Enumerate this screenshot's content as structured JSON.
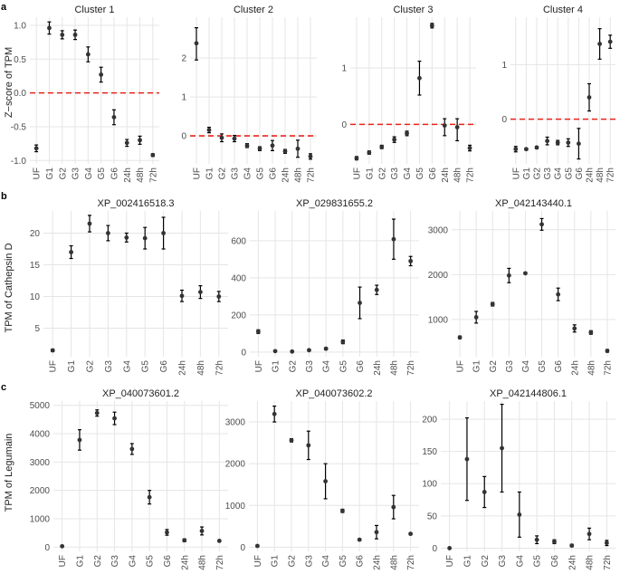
{
  "panels": [
    {
      "letter": "a",
      "ylabel": "Z−score of TPM"
    },
    {
      "letter": "b",
      "ylabel": "TPM of Cathepsin D"
    },
    {
      "letter": "c",
      "ylabel": "TPM of Legumain"
    }
  ],
  "colors": {
    "point": "#333333",
    "grid": "#e5e5e5",
    "reference_line": "#e8231c",
    "text": "#222222",
    "tick_text": "#4d4d4d"
  },
  "chart_data": [
    {
      "type": "scatter",
      "panel": "a",
      "title": "Cluster 1",
      "categories": [
        "UF",
        "G1",
        "G2",
        "G3",
        "G4",
        "G5",
        "G6",
        "24h",
        "48h",
        "72h"
      ],
      "y": [
        -0.82,
        0.96,
        0.86,
        0.86,
        0.57,
        0.27,
        -0.36,
        -0.74,
        -0.7,
        -0.92
      ],
      "err_low": [
        -0.87,
        0.87,
        0.8,
        0.79,
        0.46,
        0.16,
        -0.47,
        -0.79,
        -0.76,
        -0.94
      ],
      "err_high": [
        -0.77,
        1.05,
        0.92,
        0.93,
        0.68,
        0.38,
        -0.25,
        -0.69,
        -0.64,
        -0.9
      ],
      "ylim": [
        -1.05,
        1.12
      ],
      "yticks": [
        "-1.0",
        "-0.5",
        "0.0",
        "0.5",
        "1.0"
      ],
      "hline": 0
    },
    {
      "type": "scatter",
      "panel": "a",
      "title": "Cluster 2",
      "categories": [
        "UF",
        "G1",
        "G2",
        "G3",
        "G4",
        "G5",
        "G6",
        "24h",
        "48h",
        "72h"
      ],
      "y": [
        2.38,
        0.15,
        -0.05,
        -0.07,
        -0.25,
        -0.33,
        -0.25,
        -0.4,
        -0.33,
        -0.53
      ],
      "err_low": [
        1.95,
        0.08,
        -0.15,
        -0.15,
        -0.3,
        -0.38,
        -0.38,
        -0.45,
        -0.55,
        -0.6
      ],
      "err_high": [
        2.78,
        0.22,
        0.05,
        0.01,
        -0.2,
        -0.28,
        -0.12,
        -0.35,
        -0.11,
        -0.46
      ],
      "ylim": [
        -0.72,
        3.05
      ],
      "yticks": [
        "0",
        "1",
        "2"
      ],
      "hline": 0
    },
    {
      "type": "scatter",
      "panel": "a",
      "title": "Cluster 3",
      "categories": [
        "UF",
        "G1",
        "G2",
        "G3",
        "G4",
        "G5",
        "G6",
        "24h",
        "48h",
        "72h"
      ],
      "y": [
        -0.6,
        -0.5,
        -0.4,
        -0.27,
        -0.16,
        0.82,
        1.75,
        -0.02,
        -0.05,
        -0.42
      ],
      "err_low": [
        -0.63,
        -0.53,
        -0.43,
        -0.32,
        -0.2,
        0.52,
        1.71,
        -0.2,
        -0.29,
        -0.47
      ],
      "err_high": [
        -0.57,
        -0.47,
        -0.37,
        -0.22,
        -0.12,
        1.12,
        1.79,
        0.1,
        0.1,
        -0.37
      ],
      "ylim": [
        -0.7,
        1.9
      ],
      "yticks": [
        "0",
        "1"
      ],
      "hline": 0
    },
    {
      "type": "scatter",
      "panel": "a",
      "title": "Cluster 4",
      "categories": [
        "UF",
        "G1",
        "G2",
        "G3",
        "G4",
        "G5",
        "G6",
        "24h",
        "48h",
        "72h"
      ],
      "y": [
        -0.55,
        -0.55,
        -0.52,
        -0.4,
        -0.43,
        -0.43,
        -0.45,
        0.4,
        1.38,
        1.42
      ],
      "err_low": [
        -0.6,
        -0.57,
        -0.54,
        -0.47,
        -0.47,
        -0.5,
        -0.73,
        0.15,
        1.1,
        1.3
      ],
      "err_high": [
        -0.5,
        -0.53,
        -0.5,
        -0.33,
        -0.39,
        -0.36,
        -0.17,
        0.65,
        1.66,
        1.54
      ],
      "ylim": [
        -0.82,
        1.87
      ],
      "yticks": [
        "0",
        "1"
      ],
      "hline": 0
    },
    {
      "type": "scatter",
      "panel": "b",
      "title": "XP_002416518.3",
      "categories": [
        "UF",
        "G1",
        "G2",
        "G3",
        "G4",
        "G5",
        "G6",
        "24h",
        "48h",
        "72h"
      ],
      "y": [
        1.5,
        17.0,
        21.5,
        20.0,
        19.3,
        19.2,
        20.0,
        10.1,
        10.7,
        10.0
      ],
      "err_low": [
        1.3,
        16.0,
        20.2,
        18.8,
        18.6,
        17.5,
        17.5,
        9.2,
        9.7,
        9.2
      ],
      "err_high": [
        1.7,
        18.0,
        22.8,
        21.2,
        20.0,
        20.9,
        22.5,
        11.0,
        11.7,
        10.8
      ],
      "ylim": [
        0.5,
        23.5
      ],
      "yticks": [
        "5",
        "10",
        "15",
        "20"
      ]
    },
    {
      "type": "scatter",
      "panel": "b",
      "title": "XP_029831655.2",
      "categories": [
        "UF",
        "G1",
        "G2",
        "G3",
        "G4",
        "G5",
        "G6",
        "24h",
        "48h",
        "72h"
      ],
      "y": [
        110,
        5,
        3,
        10,
        18,
        55,
        265,
        335,
        608,
        490
      ],
      "err_low": [
        100,
        2,
        1,
        6,
        12,
        45,
        180,
        310,
        500,
        465
      ],
      "err_high": [
        120,
        8,
        5,
        14,
        24,
        65,
        350,
        360,
        716,
        515
      ],
      "ylim": [
        -25,
        760
      ],
      "yticks": [
        "0",
        "200",
        "400",
        "600"
      ]
    },
    {
      "type": "scatter",
      "panel": "b",
      "title": "XP_042143440.1",
      "categories": [
        "UF",
        "G1",
        "G2",
        "G3",
        "G4",
        "G5",
        "G6",
        "24h",
        "48h",
        "72h"
      ],
      "y": [
        600,
        1050,
        1340,
        1980,
        2030,
        3120,
        1560,
        800,
        710,
        300
      ],
      "err_low": [
        570,
        920,
        1300,
        1820,
        2010,
        2990,
        1420,
        720,
        670,
        270
      ],
      "err_high": [
        630,
        1180,
        1380,
        2140,
        2050,
        3250,
        1700,
        880,
        750,
        330
      ],
      "ylim": [
        170,
        3420
      ],
      "yticks": [
        "1000",
        "2000",
        "3000"
      ]
    },
    {
      "type": "scatter",
      "panel": "c",
      "title": "XP_040073601.2",
      "categories": [
        "UF",
        "G1",
        "G2",
        "G3",
        "G4",
        "G5",
        "G6",
        "24h",
        "48h",
        "72h"
      ],
      "y": [
        30,
        3780,
        4730,
        4540,
        3460,
        1760,
        520,
        240,
        570,
        220
      ],
      "err_low": [
        10,
        3420,
        4620,
        4320,
        3270,
        1520,
        420,
        190,
        430,
        200
      ],
      "err_high": [
        50,
        4140,
        4840,
        4760,
        3650,
        2000,
        620,
        290,
        710,
        240
      ],
      "ylim": [
        -150,
        5150
      ],
      "yticks": [
        "0",
        "1000",
        "2000",
        "3000",
        "4000",
        "5000"
      ]
    },
    {
      "type": "scatter",
      "panel": "c",
      "title": "XP_040073602.2",
      "categories": [
        "UF",
        "G1",
        "G2",
        "G3",
        "G4",
        "G5",
        "G6",
        "24h",
        "48h",
        "72h"
      ],
      "y": [
        30,
        3190,
        2560,
        2440,
        1580,
        870,
        180,
        360,
        960,
        320
      ],
      "err_low": [
        10,
        3000,
        2520,
        2100,
        1160,
        830,
        160,
        200,
        680,
        300
      ],
      "err_high": [
        50,
        3380,
        2600,
        2780,
        2000,
        910,
        200,
        520,
        1240,
        340
      ],
      "ylim": [
        -100,
        3500
      ],
      "yticks": [
        "0",
        "1000",
        "2000",
        "3000"
      ]
    },
    {
      "type": "scatter",
      "panel": "c",
      "title": "XP_042144806.1",
      "categories": [
        "UF",
        "G1",
        "G2",
        "G3",
        "G4",
        "G5",
        "G6",
        "24h",
        "48h",
        "72h"
      ],
      "y": [
        0,
        138,
        87,
        155,
        52,
        13,
        10,
        4,
        22,
        8
      ],
      "err_low": [
        0,
        74,
        63,
        87,
        17,
        7,
        7,
        2,
        13,
        4
      ],
      "err_high": [
        0,
        202,
        111,
        223,
        87,
        19,
        13,
        6,
        31,
        12
      ],
      "ylim": [
        -5,
        228
      ],
      "yticks": [
        "0",
        "50",
        "100",
        "150",
        "200"
      ]
    }
  ]
}
